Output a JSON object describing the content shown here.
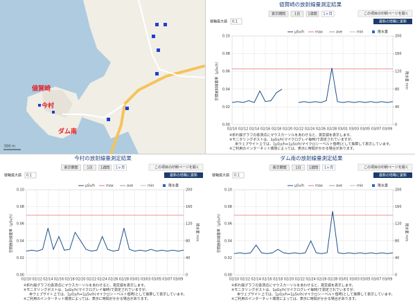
{
  "map": {
    "labels": [
      "値賀崎",
      "今村",
      "ダム南",
      "500 m"
    ]
  },
  "chart_data": [
    {
      "type": "line",
      "title": "値賀崎の放射線量測定結果",
      "buttons": [
        "表示期間",
        "1日",
        "1週間",
        "1ヶ月"
      ],
      "print_link": "この項目の印刷ページを開く",
      "refresh": "最新の情報に更新",
      "ymax_label": "縦軸最大値",
      "ymax_select": "0.1",
      "ylabel": "空間放射線量率（μSv/h）",
      "y2label": "降水量 mm",
      "categories": [
        "02/10",
        null,
        "02/12",
        null,
        "02/14",
        null,
        "02/16",
        null,
        "02/18",
        null,
        "02/20",
        null,
        "02/22",
        null,
        "02/24",
        null,
        "02/26",
        null,
        "02/28",
        null,
        "03/01",
        null,
        "03/03",
        null,
        "03/05",
        null,
        "03/07",
        null,
        "03/09",
        null
      ],
      "series": [
        {
          "name": "μSv/h",
          "color": "#1b4f8a",
          "values": [
            0.025,
            0.026,
            0.025,
            0.027,
            0.025,
            0.038,
            0.026,
            0.027,
            0.036,
            0.04,
            null,
            null,
            0.025,
            0.026,
            0.025,
            0.026,
            0.025,
            0.027,
            0.064,
            0.026,
            0.025,
            0.026,
            0.025,
            0.026,
            0.025,
            0.026,
            0.025,
            0.026,
            0.025,
            0.026
          ]
        }
      ],
      "max": {
        "name": "max",
        "color": "#e87070",
        "value": 0.063
      },
      "legend_extra": [
        {
          "name": "ave",
          "color": "#999999"
        },
        {
          "name": "min",
          "color": "#bbbbbb"
        },
        {
          "name": "降水量",
          "color": "#2a66c4"
        }
      ],
      "ylim": [
        0,
        0.1
      ],
      "yticks": [
        {
          "value": 0,
          "label": "0.00"
        },
        {
          "value": 0.02,
          "label": "0.02"
        },
        {
          "value": 0.04,
          "label": "0.04"
        },
        {
          "value": 0.06,
          "label": "0.06"
        },
        {
          "value": 0.08,
          "label": "0.08"
        },
        {
          "value": 0.1,
          "label": "0.10"
        }
      ],
      "y2lim": [
        0,
        200
      ],
      "y2ticks": [
        0,
        40,
        80,
        120,
        160,
        200
      ],
      "grid": true,
      "notes": [
        "※折れ線グラフの各頂点にマウスカーソルをあわせると、測定値を表示します。",
        "※モニタリングポストは、1μGy/h(マイクログレイ毎時)で測定されていますが、",
        "本ウェブサイト上では、1μGy/h=1μSv/h(マイクロシーベルト毎時)として換算して表示しています。",
        "※ご利用のインターネット環境によっては、表示に時間がかかる場合があります。"
      ]
    },
    {
      "type": "line",
      "title": "今村の放射線量測定結果",
      "buttons": [
        "表示期間",
        "1日",
        "1週間",
        "1ヶ月"
      ],
      "print_link": "この項目の印刷ページを開く",
      "refresh": "最新の情報に更新",
      "ymax_label": "縦軸最大値",
      "ymax_select": "0.1",
      "ylabel": "空間放射線量率（μSv/h）",
      "y2label": "降水量 mm",
      "categories": [
        "02/10",
        null,
        "02/12",
        null,
        "02/14",
        null,
        "02/16",
        null,
        "02/18",
        null,
        "02/20",
        null,
        "02/22",
        null,
        "02/24",
        null,
        "02/26",
        null,
        "02/28",
        null,
        "03/01",
        null,
        "03/03",
        null,
        "03/05",
        null,
        "03/07",
        null,
        "03/09",
        null
      ],
      "series": [
        {
          "name": "μSv/h",
          "color": "#1b4f8a",
          "values": [
            0.028,
            0.029,
            0.028,
            0.03,
            0.055,
            0.03,
            0.045,
            0.029,
            0.03,
            0.05,
            0.04,
            0.03,
            0.028,
            0.029,
            0.045,
            0.03,
            0.028,
            0.029,
            0.055,
            0.03,
            0.028,
            0.029,
            0.028,
            0.03,
            0.028,
            0.029,
            0.028,
            0.029,
            0.028,
            0.029
          ]
        }
      ],
      "max": {
        "name": "max",
        "color": "#e87070",
        "value": 0.07
      },
      "legend_extra": [
        {
          "name": "ave",
          "color": "#999999"
        },
        {
          "name": "min",
          "color": "#bbbbbb"
        },
        {
          "name": "降水量",
          "color": "#2a66c4"
        }
      ],
      "ylim": [
        0,
        0.1
      ],
      "yticks": [
        {
          "value": 0,
          "label": "0.00"
        },
        {
          "value": 0.02,
          "label": "0.02"
        },
        {
          "value": 0.04,
          "label": "0.04"
        },
        {
          "value": 0.06,
          "label": "0.06"
        },
        {
          "value": 0.08,
          "label": "0.08"
        },
        {
          "value": 0.1,
          "label": "0.10"
        }
      ],
      "y2lim": [
        0,
        200
      ],
      "y2ticks": [
        0,
        40,
        80,
        120,
        160,
        200
      ],
      "grid": true,
      "notes": [
        "※折れ線グラフの各頂点にマウスカーソルをあわせると、測定値を表示します。",
        "※モニタリングポストは、1μGy/h(マイクログレイ毎時)で測定されていますが、",
        "本ウェブサイト上では、1μGy/h=1μSv/h(マイクロシーベルト毎時)として換算して表示しています。",
        "※ご利用のインターネット環境によっては、表示に時間がかかる場合があります。"
      ]
    },
    {
      "type": "line",
      "title": "ダム南の放射線量測定結果",
      "buttons": [
        "表示期間",
        "1日",
        "1週間",
        "1ヶ月"
      ],
      "print_link": "この項目の印刷ページを開く",
      "refresh": "最新の情報に更新",
      "ymax_label": "縦軸最大値",
      "ymax_select": "0.1",
      "ylabel": "空間放射線量率（μSv/h）",
      "y2label": "降水量 mm",
      "categories": [
        "02/10",
        null,
        "02/12",
        null,
        "02/14",
        null,
        "02/16",
        null,
        "02/18",
        null,
        "02/20",
        null,
        "02/22",
        null,
        "02/24",
        null,
        "02/26",
        null,
        "02/28",
        null,
        "03/01",
        null,
        "03/03",
        null,
        "03/05",
        null,
        "03/07",
        null,
        "03/09",
        null
      ],
      "series": [
        {
          "name": "μSv/h",
          "color": "#1b4f8a",
          "values": [
            0.025,
            0.026,
            0.025,
            0.026,
            0.035,
            0.026,
            0.025,
            0.026,
            0.03,
            0.026,
            0.025,
            0.026,
            0.025,
            0.026,
            0.04,
            0.026,
            0.025,
            0.026,
            0.075,
            0.026,
            0.025,
            0.026,
            0.025,
            0.026,
            0.025,
            0.026,
            0.025,
            0.026,
            0.025,
            0.026
          ]
        }
      ],
      "max": {
        "name": "max",
        "color": "#e87070",
        "value": 0.07
      },
      "legend_extra": [
        {
          "name": "ave",
          "color": "#999999"
        },
        {
          "name": "min",
          "color": "#bbbbbb"
        },
        {
          "name": "降水量",
          "color": "#2a66c4"
        }
      ],
      "ylim": [
        0,
        0.1
      ],
      "yticks": [
        {
          "value": 0,
          "label": "0.00"
        },
        {
          "value": 0.02,
          "label": "0.02"
        },
        {
          "value": 0.04,
          "label": "0.04"
        },
        {
          "value": 0.06,
          "label": "0.06"
        },
        {
          "value": 0.08,
          "label": "0.08"
        },
        {
          "value": 0.1,
          "label": "0.10"
        }
      ],
      "y2lim": [
        0,
        200
      ],
      "y2ticks": [
        0,
        40,
        80,
        120,
        160,
        200
      ],
      "grid": true,
      "notes": [
        "※折れ線グラフの各頂点にマウスカーソルをあわせると、測定値を表示します。",
        "※モニタリングポストは、1μGy/h(マイクログレイ毎時)で測定されていますが、",
        "本ウェブサイト上では、1μGy/h=1μSv/h(マイクロシーベルト毎時)として換算して表示しています。",
        "※ご利用のインターネット環境によっては、表示に時間がかかる場合があります。"
      ]
    }
  ]
}
